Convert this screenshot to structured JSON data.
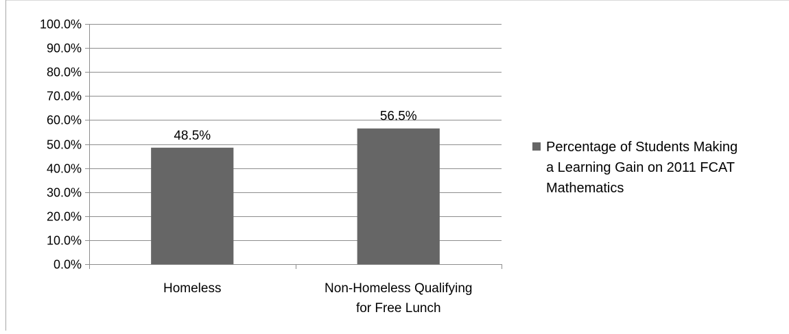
{
  "chart_data": {
    "type": "bar",
    "categories": [
      [
        "Homeless"
      ],
      [
        "Non-Homeless Qualifying",
        "for Free Lunch"
      ]
    ],
    "series": [
      {
        "name": "Percentage of Students Making a Learning Gain on 2011 FCAT Mathematics",
        "legend_lines": [
          "Percentage of Students Making",
          "a Learning Gain on 2011 FCAT",
          "Mathematics"
        ],
        "values": [
          0.485,
          0.565
        ],
        "data_labels": [
          "48.5%",
          "56.5%"
        ],
        "color": "#666666"
      }
    ],
    "ylim": [
      0,
      1.0
    ],
    "yticks": [
      {
        "value": 0.0,
        "label": "0.0%"
      },
      {
        "value": 0.1,
        "label": "10.0%"
      },
      {
        "value": 0.2,
        "label": "20.0%"
      },
      {
        "value": 0.3,
        "label": "30.0%"
      },
      {
        "value": 0.4,
        "label": "40.0%"
      },
      {
        "value": 0.5,
        "label": "50.0%"
      },
      {
        "value": 0.6,
        "label": "60.0%"
      },
      {
        "value": 0.7,
        "label": "70.0%"
      },
      {
        "value": 0.8,
        "label": "80.0%"
      },
      {
        "value": 0.9,
        "label": "90.0%"
      },
      {
        "value": 1.0,
        "label": "100.0%"
      }
    ],
    "grid": true,
    "legend_position": "right",
    "title": "",
    "xlabel": "",
    "ylabel": ""
  }
}
